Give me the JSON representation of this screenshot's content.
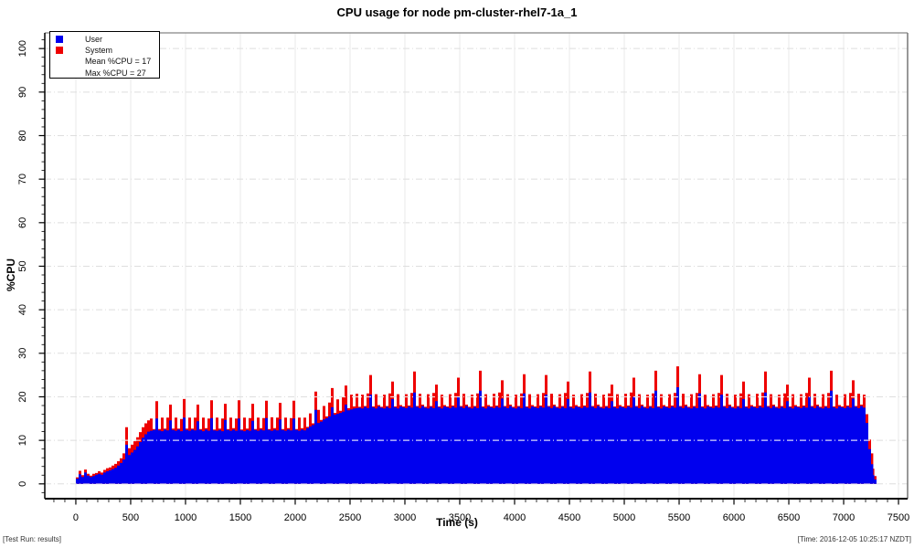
{
  "footer": {
    "left": "[Test Run: results]",
    "right": "[Time: 2016-12-05 10:25:17 NZDT]"
  },
  "chart_data": {
    "type": "area",
    "stacked": true,
    "title": "CPU usage for node pm-cluster-rhel7-1a_1",
    "xlabel": "Time (s)",
    "ylabel": "%CPU",
    "grid": true,
    "legend_position": "top-left",
    "series": [
      {
        "name": "User",
        "color": "#0000ee"
      },
      {
        "name": "System",
        "color": "#ee0000"
      }
    ],
    "mean_label": "Mean %CPU = 17",
    "max_label": "Max %CPU = 27",
    "mean_pct_cpu": 17,
    "max_pct_cpu": 27,
    "x_ticks": [
      0,
      500,
      1000,
      1500,
      2000,
      2500,
      3000,
      3500,
      4000,
      4500,
      5000,
      5500,
      6000,
      6500,
      7000,
      7500
    ],
    "x_minor_step": 100,
    "y_ticks": [
      0,
      10,
      20,
      30,
      40,
      50,
      60,
      70,
      80,
      90,
      100
    ],
    "y_minor_step": 2,
    "x_range": [
      -283,
      7583
    ],
    "y_range": [
      -3.4,
      103.6
    ],
    "points_format": [
      "time_s",
      "user_pct",
      "system_pct"
    ],
    "points": [
      [
        0,
        1.2,
        0.3
      ],
      [
        25,
        2.2,
        0.8
      ],
      [
        50,
        1.6,
        0.4
      ],
      [
        75,
        2.6,
        0.7
      ],
      [
        100,
        1.9,
        0.4
      ],
      [
        125,
        1.6,
        0.3
      ],
      [
        150,
        1.8,
        0.5
      ],
      [
        175,
        2.1,
        0.4
      ],
      [
        200,
        2.3,
        0.6
      ],
      [
        225,
        2.1,
        0.5
      ],
      [
        250,
        2.6,
        0.6
      ],
      [
        275,
        2.9,
        0.7
      ],
      [
        300,
        3.1,
        0.7
      ],
      [
        325,
        3.4,
        0.8
      ],
      [
        350,
        3.7,
        0.9
      ],
      [
        375,
        4.2,
        1.0
      ],
      [
        400,
        4.8,
        1.1
      ],
      [
        425,
        5.6,
        1.4
      ],
      [
        450,
        9.0,
        4.0
      ],
      [
        475,
        6.6,
        1.6
      ],
      [
        500,
        7.2,
        1.8
      ],
      [
        525,
        7.8,
        2.0
      ],
      [
        550,
        8.6,
        2.1
      ],
      [
        575,
        9.6,
        2.3
      ],
      [
        600,
        10.6,
        2.4
      ],
      [
        625,
        11.4,
        2.5
      ],
      [
        650,
        12.0,
        2.6
      ],
      [
        675,
        12.2,
        2.8
      ],
      [
        700,
        12.4,
        0.2
      ],
      [
        725,
        15.0,
        4.0
      ],
      [
        750,
        12.3,
        0.3
      ],
      [
        775,
        12.1,
        3.1
      ],
      [
        800,
        12.5,
        0.2
      ],
      [
        825,
        12.3,
        2.9
      ],
      [
        850,
        14.6,
        3.6
      ],
      [
        875,
        12.4,
        0.3
      ],
      [
        900,
        12.2,
        3.0
      ],
      [
        925,
        12.5,
        0.2
      ],
      [
        950,
        12.1,
        2.8
      ],
      [
        975,
        15.2,
        4.3
      ],
      [
        1000,
        12.4,
        0.3
      ],
      [
        1025,
        12.2,
        3.0
      ],
      [
        1050,
        12.5,
        0.2
      ],
      [
        1075,
        12.3,
        2.9
      ],
      [
        1100,
        14.4,
        3.8
      ],
      [
        1125,
        12.4,
        0.2
      ],
      [
        1150,
        12.1,
        3.1
      ],
      [
        1175,
        12.5,
        0.3
      ],
      [
        1200,
        12.2,
        2.8
      ],
      [
        1225,
        15.1,
        4.1
      ],
      [
        1250,
        12.3,
        0.2
      ],
      [
        1275,
        12.2,
        3.0
      ],
      [
        1300,
        12.4,
        0.3
      ],
      [
        1325,
        12.1,
        2.9
      ],
      [
        1350,
        14.7,
        3.7
      ],
      [
        1375,
        12.4,
        0.2
      ],
      [
        1400,
        12.2,
        3.0
      ],
      [
        1425,
        12.5,
        0.3
      ],
      [
        1450,
        12.2,
        2.8
      ],
      [
        1475,
        15.0,
        4.2
      ],
      [
        1500,
        12.3,
        0.2
      ],
      [
        1525,
        12.1,
        3.1
      ],
      [
        1550,
        12.4,
        0.3
      ],
      [
        1575,
        12.2,
        2.9
      ],
      [
        1600,
        14.5,
        3.9
      ],
      [
        1625,
        12.4,
        0.2
      ],
      [
        1650,
        12.2,
        3.0
      ],
      [
        1675,
        12.5,
        0.3
      ],
      [
        1700,
        12.3,
        2.8
      ],
      [
        1725,
        15.1,
        4.0
      ],
      [
        1750,
        12.4,
        0.2
      ],
      [
        1775,
        12.2,
        3.1
      ],
      [
        1800,
        12.5,
        0.3
      ],
      [
        1825,
        12.3,
        2.9
      ],
      [
        1850,
        14.8,
        3.8
      ],
      [
        1875,
        12.4,
        0.2
      ],
      [
        1900,
        12.2,
        3.0
      ],
      [
        1925,
        12.5,
        0.3
      ],
      [
        1950,
        12.3,
        2.8
      ],
      [
        1975,
        15.0,
        4.1
      ],
      [
        2000,
        12.4,
        0.2
      ],
      [
        2025,
        12.2,
        3.0
      ],
      [
        2050,
        12.5,
        0.3
      ],
      [
        2075,
        12.3,
        2.9
      ],
      [
        2100,
        12.8,
        0.3
      ],
      [
        2125,
        13.2,
        3.0
      ],
      [
        2150,
        13.5,
        0.4
      ],
      [
        2175,
        17.0,
        4.2
      ],
      [
        2200,
        14.0,
        3.0
      ],
      [
        2225,
        14.3,
        0.4
      ],
      [
        2250,
        14.8,
        3.1
      ],
      [
        2275,
        15.1,
        0.4
      ],
      [
        2300,
        15.5,
        3.2
      ],
      [
        2325,
        17.6,
        4.4
      ],
      [
        2350,
        15.9,
        0.4
      ],
      [
        2375,
        16.1,
        3.3
      ],
      [
        2400,
        16.3,
        0.5
      ],
      [
        2425,
        16.6,
        3.4
      ],
      [
        2450,
        18.2,
        4.4
      ],
      [
        2475,
        16.9,
        0.5
      ],
      [
        2500,
        17.1,
        3.4
      ],
      [
        2525,
        17.3,
        0.5
      ],
      [
        2550,
        17.4,
        3.3
      ],
      [
        2575,
        17.5,
        0.2
      ],
      [
        2600,
        17.3,
        3.2
      ],
      [
        2625,
        17.7,
        0.2
      ],
      [
        2650,
        17.4,
        3.4
      ],
      [
        2675,
        20.5,
        4.5
      ],
      [
        2700,
        17.6,
        0.2
      ],
      [
        2725,
        17.3,
        3.3
      ],
      [
        2750,
        17.8,
        0.3
      ],
      [
        2775,
        17.5,
        0.2
      ],
      [
        2800,
        17.3,
        3.2
      ],
      [
        2825,
        17.7,
        0.2
      ],
      [
        2850,
        17.4,
        3.4
      ],
      [
        2875,
        19.5,
        4.0
      ],
      [
        2900,
        17.6,
        0.2
      ],
      [
        2925,
        17.3,
        3.3
      ],
      [
        2950,
        17.8,
        0.3
      ],
      [
        2975,
        17.6,
        0.2
      ],
      [
        3000,
        17.4,
        3.2
      ],
      [
        3025,
        17.8,
        0.2
      ],
      [
        3050,
        17.5,
        3.4
      ],
      [
        3075,
        21.0,
        4.8
      ],
      [
        3100,
        17.7,
        0.2
      ],
      [
        3125,
        17.4,
        3.3
      ],
      [
        3150,
        17.9,
        0.3
      ],
      [
        3175,
        17.5,
        0.2
      ],
      [
        3200,
        17.3,
        3.3
      ],
      [
        3225,
        17.7,
        0.2
      ],
      [
        3250,
        17.4,
        3.5
      ],
      [
        3275,
        19.0,
        3.8
      ],
      [
        3300,
        17.6,
        0.2
      ],
      [
        3325,
        17.3,
        3.2
      ],
      [
        3350,
        17.8,
        0.3
      ],
      [
        3375,
        17.6,
        0.2
      ],
      [
        3400,
        17.4,
        3.2
      ],
      [
        3425,
        17.8,
        0.2
      ],
      [
        3450,
        17.5,
        3.4
      ],
      [
        3475,
        20.0,
        4.4
      ],
      [
        3500,
        17.7,
        0.2
      ],
      [
        3525,
        17.4,
        3.3
      ],
      [
        3550,
        17.9,
        0.3
      ],
      [
        3575,
        17.5,
        0.2
      ],
      [
        3600,
        17.3,
        3.2
      ],
      [
        3625,
        17.7,
        0.2
      ],
      [
        3650,
        17.4,
        3.4
      ],
      [
        3675,
        21.4,
        4.6
      ],
      [
        3700,
        17.6,
        0.2
      ],
      [
        3725,
        17.3,
        3.3
      ],
      [
        3750,
        17.8,
        0.3
      ],
      [
        3775,
        17.6,
        0.2
      ],
      [
        3800,
        17.4,
        3.3
      ],
      [
        3825,
        17.8,
        0.2
      ],
      [
        3850,
        17.5,
        3.5
      ],
      [
        3875,
        19.6,
        4.2
      ],
      [
        3900,
        17.7,
        0.2
      ],
      [
        3925,
        17.4,
        3.2
      ],
      [
        3950,
        17.9,
        0.3
      ],
      [
        3975,
        17.5,
        0.2
      ],
      [
        4000,
        17.3,
        3.2
      ],
      [
        4025,
        17.7,
        0.2
      ],
      [
        4050,
        17.4,
        3.4
      ],
      [
        4075,
        20.8,
        4.4
      ],
      [
        4100,
        17.6,
        0.2
      ],
      [
        4125,
        17.3,
        3.3
      ],
      [
        4150,
        17.8,
        0.3
      ],
      [
        4175,
        17.6,
        0.2
      ],
      [
        4200,
        17.4,
        3.2
      ],
      [
        4225,
        17.8,
        0.2
      ],
      [
        4250,
        17.5,
        3.4
      ],
      [
        4275,
        20.5,
        4.5
      ],
      [
        4300,
        17.7,
        0.2
      ],
      [
        4325,
        17.4,
        3.3
      ],
      [
        4350,
        17.9,
        0.3
      ],
      [
        4375,
        17.5,
        0.2
      ],
      [
        4400,
        17.3,
        3.3
      ],
      [
        4425,
        17.7,
        0.2
      ],
      [
        4450,
        17.4,
        3.5
      ],
      [
        4475,
        19.5,
        4.0
      ],
      [
        4500,
        17.6,
        0.2
      ],
      [
        4525,
        17.3,
        3.2
      ],
      [
        4550,
        17.8,
        0.3
      ],
      [
        4575,
        17.6,
        0.2
      ],
      [
        4600,
        17.4,
        3.2
      ],
      [
        4625,
        17.8,
        0.2
      ],
      [
        4650,
        17.5,
        3.4
      ],
      [
        4675,
        21.0,
        4.8
      ],
      [
        4700,
        17.7,
        0.2
      ],
      [
        4725,
        17.4,
        3.3
      ],
      [
        4750,
        17.9,
        0.3
      ],
      [
        4775,
        17.5,
        0.2
      ],
      [
        4800,
        17.3,
        3.2
      ],
      [
        4825,
        17.7,
        0.2
      ],
      [
        4850,
        17.4,
        3.4
      ],
      [
        4875,
        19.0,
        3.8
      ],
      [
        4900,
        17.6,
        0.2
      ],
      [
        4925,
        17.3,
        3.3
      ],
      [
        4950,
        17.8,
        0.3
      ],
      [
        4975,
        17.6,
        0.2
      ],
      [
        5000,
        17.4,
        3.3
      ],
      [
        5025,
        17.8,
        0.2
      ],
      [
        5050,
        17.5,
        3.5
      ],
      [
        5075,
        20.0,
        4.4
      ],
      [
        5100,
        17.7,
        0.2
      ],
      [
        5125,
        17.4,
        3.2
      ],
      [
        5150,
        17.9,
        0.3
      ],
      [
        5175,
        17.5,
        0.2
      ],
      [
        5200,
        17.3,
        3.2
      ],
      [
        5225,
        17.7,
        0.2
      ],
      [
        5250,
        17.4,
        3.4
      ],
      [
        5275,
        21.4,
        4.6
      ],
      [
        5300,
        17.6,
        0.2
      ],
      [
        5325,
        17.3,
        3.3
      ],
      [
        5350,
        17.8,
        0.3
      ],
      [
        5375,
        17.6,
        0.2
      ],
      [
        5400,
        17.4,
        3.2
      ],
      [
        5425,
        17.8,
        0.2
      ],
      [
        5450,
        17.5,
        3.4
      ],
      [
        5475,
        22.2,
        4.8
      ],
      [
        5500,
        17.7,
        0.2
      ],
      [
        5525,
        17.4,
        3.3
      ],
      [
        5550,
        17.9,
        0.3
      ],
      [
        5575,
        17.5,
        0.2
      ],
      [
        5600,
        17.3,
        3.3
      ],
      [
        5625,
        17.7,
        0.2
      ],
      [
        5650,
        17.4,
        3.5
      ],
      [
        5675,
        20.8,
        4.4
      ],
      [
        5700,
        17.6,
        0.2
      ],
      [
        5725,
        17.3,
        3.2
      ],
      [
        5750,
        17.8,
        0.3
      ],
      [
        5775,
        17.6,
        0.2
      ],
      [
        5800,
        17.4,
        3.2
      ],
      [
        5825,
        17.8,
        0.2
      ],
      [
        5850,
        17.5,
        3.4
      ],
      [
        5875,
        20.5,
        4.5
      ],
      [
        5900,
        17.7,
        0.2
      ],
      [
        5925,
        17.4,
        3.3
      ],
      [
        5950,
        17.9,
        0.3
      ],
      [
        5975,
        17.5,
        0.2
      ],
      [
        6000,
        17.3,
        3.2
      ],
      [
        6025,
        17.7,
        0.2
      ],
      [
        6050,
        17.4,
        3.4
      ],
      [
        6075,
        19.5,
        4.0
      ],
      [
        6100,
        17.6,
        0.2
      ],
      [
        6125,
        17.3,
        3.3
      ],
      [
        6150,
        17.8,
        0.3
      ],
      [
        6175,
        17.6,
        0.2
      ],
      [
        6200,
        17.4,
        3.3
      ],
      [
        6225,
        17.8,
        0.2
      ],
      [
        6250,
        17.5,
        3.5
      ],
      [
        6275,
        21.0,
        4.8
      ],
      [
        6300,
        17.7,
        0.2
      ],
      [
        6325,
        17.4,
        3.2
      ],
      [
        6350,
        17.9,
        0.3
      ],
      [
        6375,
        17.5,
        0.2
      ],
      [
        6400,
        17.3,
        3.2
      ],
      [
        6425,
        17.7,
        0.2
      ],
      [
        6450,
        17.4,
        3.4
      ],
      [
        6475,
        19.0,
        3.8
      ],
      [
        6500,
        17.6,
        0.2
      ],
      [
        6525,
        17.3,
        3.3
      ],
      [
        6550,
        17.8,
        0.3
      ],
      [
        6575,
        17.6,
        0.2
      ],
      [
        6600,
        17.4,
        3.2
      ],
      [
        6625,
        17.8,
        0.2
      ],
      [
        6650,
        17.5,
        3.4
      ],
      [
        6675,
        20.0,
        4.4
      ],
      [
        6700,
        17.7,
        0.2
      ],
      [
        6725,
        17.4,
        3.3
      ],
      [
        6750,
        17.9,
        0.3
      ],
      [
        6775,
        17.5,
        0.2
      ],
      [
        6800,
        17.3,
        3.3
      ],
      [
        6825,
        17.7,
        0.2
      ],
      [
        6850,
        17.4,
        3.5
      ],
      [
        6875,
        21.4,
        4.6
      ],
      [
        6900,
        17.6,
        0.2
      ],
      [
        6925,
        17.3,
        3.2
      ],
      [
        6950,
        17.8,
        0.3
      ],
      [
        6975,
        17.6,
        0.2
      ],
      [
        7000,
        17.4,
        3.2
      ],
      [
        7025,
        17.8,
        0.2
      ],
      [
        7050,
        17.5,
        3.4
      ],
      [
        7075,
        19.6,
        4.2
      ],
      [
        7100,
        17.7,
        0.2
      ],
      [
        7125,
        17.4,
        3.3
      ],
      [
        7150,
        17.9,
        0.3
      ],
      [
        7175,
        17.5,
        3.0
      ],
      [
        7200,
        14.0,
        2.0
      ],
      [
        7225,
        8.0,
        2.2
      ],
      [
        7250,
        4.5,
        2.5
      ],
      [
        7270,
        2.0,
        1.5
      ],
      [
        7280,
        1.0,
        0.8
      ]
    ]
  }
}
